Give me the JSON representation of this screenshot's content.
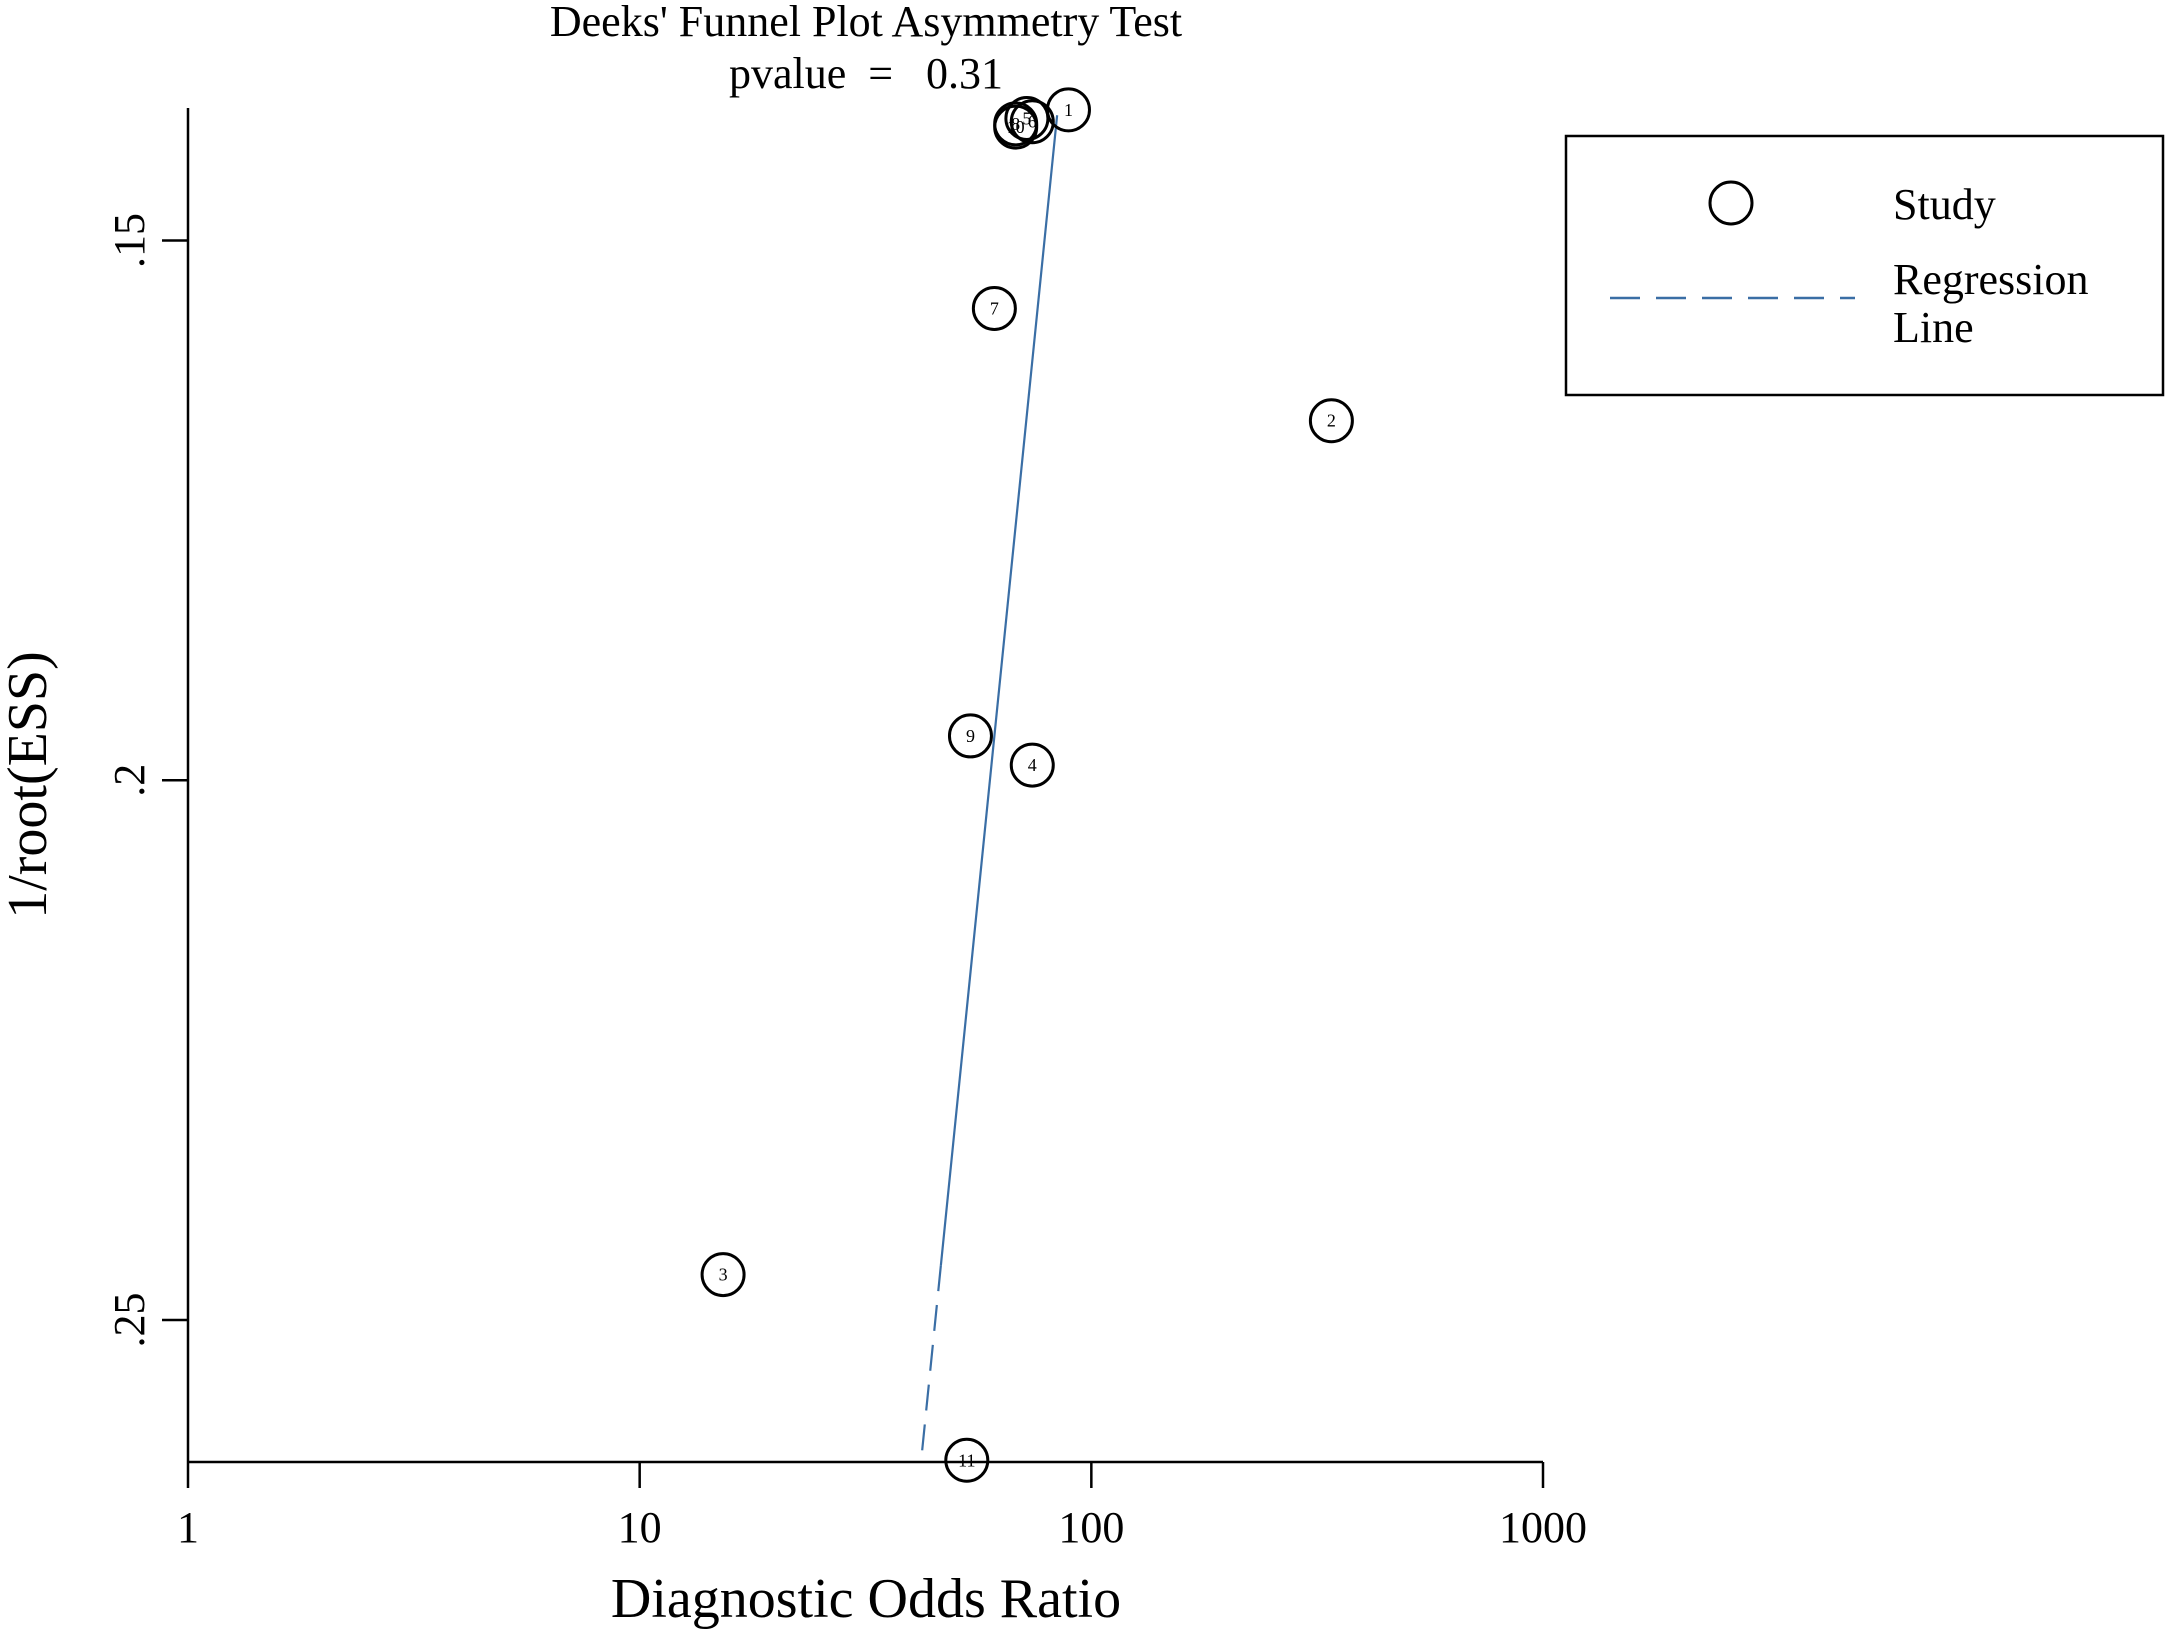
{
  "chart_data": {
    "type": "scatter",
    "title": "Deeks' Funnel Plot Asymmetry Test",
    "subtitle": "pvalue  =   0.31",
    "xlabel": "Diagnostic Odds Ratio",
    "ylabel": "1/root(ESS)",
    "x_scale": "log",
    "xlim": [
      1,
      1000
    ],
    "ylim": [
      0.13773,
      0.26316
    ],
    "y_reversed": true,
    "x_ticks": [
      {
        "value": 1,
        "label": "1"
      },
      {
        "value": 10,
        "label": "10"
      },
      {
        "value": 100,
        "label": "100"
      },
      {
        "value": 1000,
        "label": "1000"
      }
    ],
    "y_ticks": [
      {
        "value": 0.15,
        "label": ".15"
      },
      {
        "value": 0.2,
        "label": ".2"
      },
      {
        "value": 0.25,
        "label": ".25"
      }
    ],
    "grid": false,
    "legend": {
      "position": "top-right",
      "items": [
        {
          "label": "Study",
          "marker": "circle"
        },
        {
          "label": "Regression Line",
          "marker": "dashed-line"
        }
      ]
    },
    "series": [
      {
        "name": "Study",
        "points": [
          {
            "label": "1",
            "x": 89,
            "y": 0.1379
          },
          {
            "label": "2",
            "x": 340,
            "y": 0.1667
          },
          {
            "label": "3",
            "x": 15.3,
            "y": 0.2458
          },
          {
            "label": "4",
            "x": 74,
            "y": 0.1986
          },
          {
            "label": "5",
            "x": 72,
            "y": 0.1387
          },
          {
            "label": "6",
            "x": 74,
            "y": 0.139
          },
          {
            "label": "7",
            "x": 61,
            "y": 0.1563
          },
          {
            "label": "8",
            "x": 68,
            "y": 0.1392
          },
          {
            "label": "9",
            "x": 54,
            "y": 0.1959
          },
          {
            "label": "10",
            "x": 68,
            "y": 0.1395
          },
          {
            "label": "11",
            "x": 53,
            "y": 0.263
          }
        ]
      },
      {
        "name": "Regression Line",
        "points": [
          {
            "x": 84,
            "y": 0.1384
          },
          {
            "x": 42,
            "y": 0.263
          }
        ]
      }
    ],
    "colors": {
      "regression_line": "#3a6ea5",
      "marker": "#000000",
      "axis": "#000000"
    }
  }
}
